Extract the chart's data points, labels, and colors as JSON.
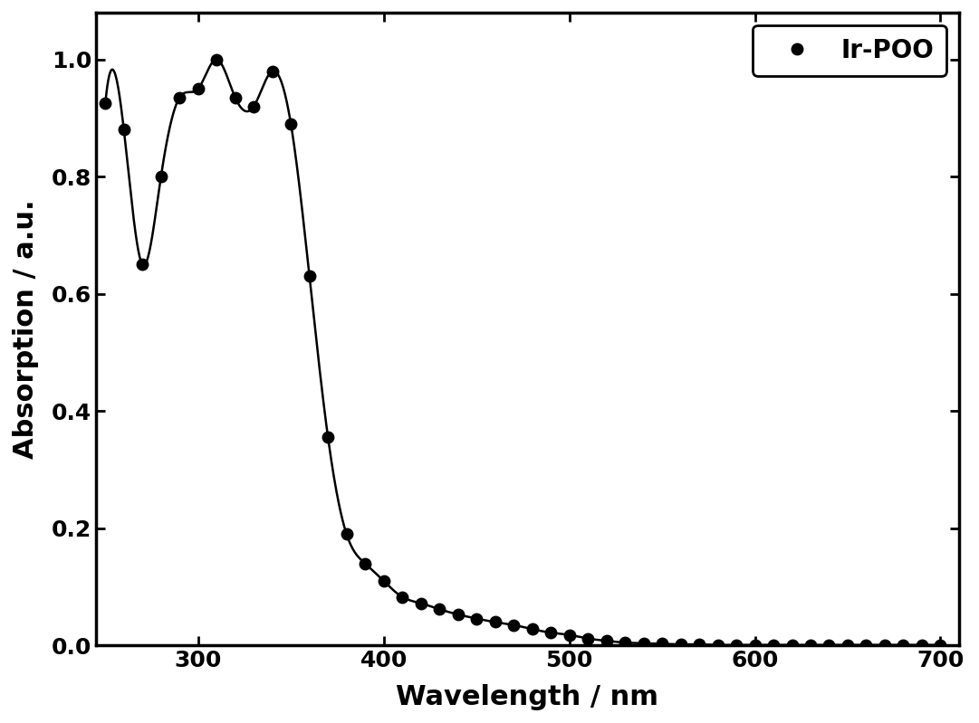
{
  "x_data": [
    250,
    260,
    270,
    280,
    290,
    300,
    310,
    320,
    330,
    340,
    350,
    360,
    370,
    380,
    390,
    400,
    410,
    420,
    430,
    440,
    450,
    460,
    470,
    480,
    490,
    500,
    510,
    520,
    530,
    540,
    550,
    560,
    570,
    580,
    590,
    600,
    610,
    620,
    630,
    640,
    650,
    660,
    670,
    680,
    690,
    700
  ],
  "y_data": [
    0.925,
    0.88,
    0.65,
    0.8,
    0.935,
    0.95,
    1.0,
    0.935,
    0.92,
    0.98,
    0.89,
    0.63,
    0.355,
    0.19,
    0.14,
    0.11,
    0.083,
    0.072,
    0.062,
    0.053,
    0.046,
    0.04,
    0.035,
    0.028,
    0.022,
    0.018,
    0.012,
    0.008,
    0.005,
    0.004,
    0.003,
    0.002,
    0.002,
    0.001,
    0.001,
    0.001,
    0.001,
    0.001,
    0.001,
    0.001,
    0.001,
    0.001,
    0.001,
    0.001,
    0.001,
    0.001
  ],
  "xlabel": "Wavelength / nm",
  "ylabel": "Absorption / a.u.",
  "legend_label": "Ir-POO",
  "xlim": [
    245,
    710
  ],
  "ylim": [
    0.0,
    1.08
  ],
  "xticks": [
    300,
    400,
    500,
    600,
    700
  ],
  "yticks": [
    0.0,
    0.2,
    0.4,
    0.6,
    0.8,
    1.0
  ],
  "line_color": "#000000",
  "marker_color": "#000000",
  "marker_size": 9,
  "linewidth": 1.8,
  "background_color": "#ffffff",
  "font_size_label": 22,
  "font_size_tick": 18,
  "font_size_legend": 20
}
